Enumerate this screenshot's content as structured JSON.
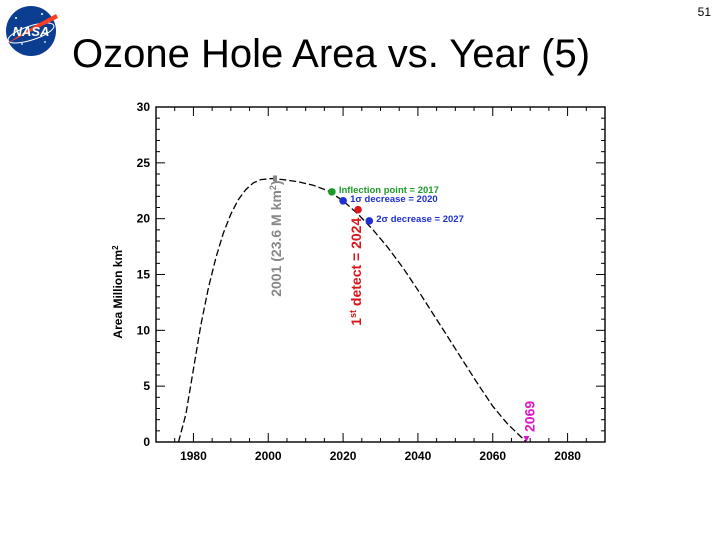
{
  "slide": {
    "number": "51",
    "title": "Ozone Hole Area vs. Year (5)"
  },
  "logo": {
    "text": "NASA",
    "icon": "nasa-meatball-logo",
    "colors": {
      "blue": "#0b3d91",
      "red": "#fc3d21"
    }
  },
  "chart_data": {
    "type": "line",
    "ylabel": "Area Million km",
    "ylabel_sup": "2",
    "xlim": [
      1970,
      2090
    ],
    "ylim": [
      0,
      30
    ],
    "x_ticks": [
      1980,
      2000,
      2020,
      2040,
      2060,
      2080
    ],
    "y_ticks": [
      0,
      5,
      10,
      15,
      20,
      25,
      30
    ],
    "series": [
      {
        "style": "dashed",
        "color": "#000000",
        "x": [
          1976,
          1978,
          1980,
          1982,
          1984,
          1986,
          1988,
          1990,
          1992,
          1994,
          1996,
          1998,
          2001,
          2004,
          2008,
          2012,
          2016,
          2020,
          2024,
          2028,
          2032,
          2036,
          2040,
          2044,
          2048,
          2052,
          2056,
          2060,
          2064,
          2069
        ],
        "y": [
          0,
          2.5,
          6.5,
          10.5,
          13.8,
          16.5,
          18.7,
          20.4,
          21.7,
          22.6,
          23.2,
          23.5,
          23.6,
          23.5,
          23.3,
          23.0,
          22.5,
          21.6,
          20.4,
          19.0,
          17.4,
          15.6,
          13.6,
          11.5,
          9.4,
          7.3,
          5.2,
          3.2,
          1.6,
          0
        ]
      }
    ],
    "points": [
      {
        "x": 2017,
        "y": 22.4,
        "color": "#1c9b2a",
        "label": "Inflection point = 2017"
      },
      {
        "x": 2020,
        "y": 21.6,
        "color": "#1f2fd1",
        "label_sym": "1σ",
        "label": " decrease = 2020"
      },
      {
        "x": 2024,
        "y": 20.8,
        "color": "#d9161b",
        "label": ""
      },
      {
        "x": 2027,
        "y": 19.8,
        "color": "#1f2fd1",
        "label_sym": "2σ",
        "label": " decrease = 2027"
      }
    ],
    "annotations": [
      {
        "text_main": "2001 (23.6 M km",
        "text_sup": "2",
        "text_end": ")",
        "color": "#888888",
        "x": 2001,
        "y": 23.6
      },
      {
        "text_main": "1",
        "text_sup": "st",
        "text_end": " detect = 2024",
        "color": "#d9161b",
        "x": 2024,
        "y": 20.8
      },
      {
        "text_main": "2069",
        "text_sup": "",
        "text_end": "",
        "color": "#e015c9",
        "x": 2069,
        "y": 0
      }
    ]
  }
}
